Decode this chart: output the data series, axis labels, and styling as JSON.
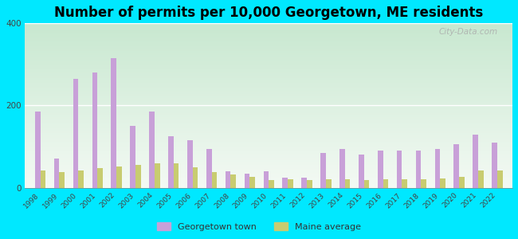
{
  "title": "Number of permits per 10,000 Georgetown, ME residents",
  "years": [
    1998,
    1999,
    2000,
    2001,
    2002,
    2003,
    2004,
    2005,
    2006,
    2007,
    2008,
    2009,
    2010,
    2011,
    2012,
    2013,
    2014,
    2015,
    2016,
    2017,
    2018,
    2019,
    2020,
    2021,
    2022
  ],
  "georgetown": [
    185,
    70,
    265,
    280,
    315,
    150,
    185,
    125,
    115,
    95,
    40,
    35,
    40,
    25,
    25,
    85,
    95,
    80,
    90,
    90,
    90,
    95,
    105,
    130,
    110
  ],
  "maine": [
    42,
    38,
    42,
    47,
    52,
    55,
    60,
    60,
    50,
    37,
    32,
    27,
    18,
    20,
    18,
    20,
    20,
    18,
    20,
    20,
    20,
    22,
    27,
    42,
    42
  ],
  "georgetown_color": "#c8a0d8",
  "maine_color": "#c8cc70",
  "background_outer": "#00e8ff",
  "grad_top": "#c8e8d0",
  "grad_bottom": "#f4faf4",
  "ylim": [
    0,
    400
  ],
  "yticks": [
    0,
    200,
    400
  ],
  "bar_width": 0.28,
  "title_fontsize": 12,
  "watermark": "City-Data.com"
}
